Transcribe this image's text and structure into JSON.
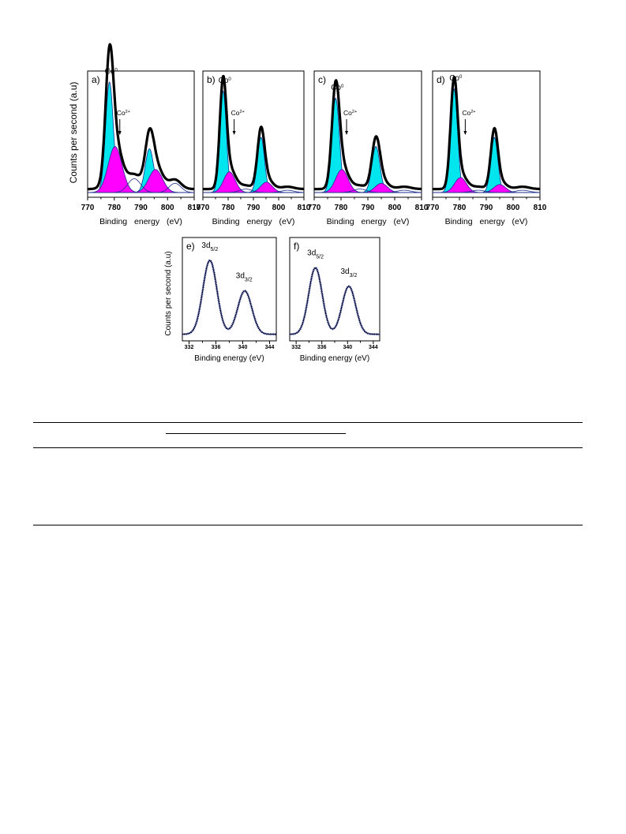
{
  "figure": {
    "ylabel_top": "Counts per second (a.u)",
    "ylabel_bottom": "Counts per second (a.u)",
    "colors": {
      "co0_fill": "#00e5ee",
      "co2_fill": "#ff00ff",
      "envelope": "#000000",
      "fit_line": "#1f2f8c"
    }
  },
  "chart_data": [
    {
      "panel": "a)",
      "type": "area",
      "xlabel": "Binding energy (eV)",
      "xlim": [
        770,
        810
      ],
      "xticks": [
        "770",
        "780",
        "790",
        "800",
        "810"
      ],
      "labels": {
        "co0": "Co",
        "co0_sup": "0",
        "co2": "Co",
        "co2_sup": "2+"
      },
      "components": [
        {
          "name": "Co0",
          "kind": "co0",
          "center": 778.2,
          "amp": 0.96,
          "sigma": 1.45
        },
        {
          "name": "Co2+",
          "kind": "co2",
          "center": 780.3,
          "amp": 0.4,
          "sigma": 2.6
        },
        {
          "name": "Co0 2p1/2",
          "kind": "co0",
          "center": 793.2,
          "amp": 0.38,
          "sigma": 1.6
        },
        {
          "name": "Co2+ 2p1/2",
          "kind": "co2",
          "center": 795.5,
          "amp": 0.2,
          "sigma": 2.6
        },
        {
          "name": "satellite",
          "kind": "sat",
          "center": 787.5,
          "amp": 0.12,
          "sigma": 2.4
        },
        {
          "name": "satellite",
          "kind": "sat",
          "center": 802.8,
          "amp": 0.08,
          "sigma": 2.2
        }
      ]
    },
    {
      "panel": "b)",
      "type": "area",
      "xlabel": "Binding energy (eV)",
      "xlim": [
        770,
        810
      ],
      "xticks": [
        "770",
        "780",
        "790",
        "800",
        "810"
      ],
      "labels": {
        "co0": "Co",
        "co0_sup": "0",
        "co2": "Co",
        "co2_sup": "2+"
      },
      "components": [
        {
          "name": "Co0",
          "kind": "co0",
          "center": 778.0,
          "amp": 0.88,
          "sigma": 1.3
        },
        {
          "name": "Co2+",
          "kind": "co2",
          "center": 780.5,
          "amp": 0.18,
          "sigma": 2.3
        },
        {
          "name": "Co0 2p1/2",
          "kind": "co0",
          "center": 793.0,
          "amp": 0.48,
          "sigma": 1.4
        },
        {
          "name": "Co2+ 2p1/2",
          "kind": "co2",
          "center": 795.2,
          "amp": 0.09,
          "sigma": 2.3
        },
        {
          "name": "satellite",
          "kind": "sat",
          "center": 787.0,
          "amp": 0.03,
          "sigma": 2.5
        },
        {
          "name": "satellite",
          "kind": "sat",
          "center": 803.5,
          "amp": 0.02,
          "sigma": 2.5
        }
      ]
    },
    {
      "panel": "c)",
      "type": "area",
      "xlabel": "Binding energy (eV)",
      "xlim": [
        770,
        810
      ],
      "xticks": [
        "770",
        "780",
        "790",
        "800",
        "810"
      ],
      "labels": {
        "co0": "Co",
        "co0_sup": "0",
        "co2": "Co",
        "co2_sup": "2+"
      },
      "components": [
        {
          "name": "Co0",
          "kind": "co0",
          "center": 778.0,
          "amp": 0.82,
          "sigma": 1.4
        },
        {
          "name": "Co2+",
          "kind": "co2",
          "center": 780.3,
          "amp": 0.2,
          "sigma": 2.3
        },
        {
          "name": "Co0 2p1/2",
          "kind": "co0",
          "center": 793.0,
          "amp": 0.4,
          "sigma": 1.5
        },
        {
          "name": "Co2+ 2p1/2",
          "kind": "co2",
          "center": 795.0,
          "amp": 0.08,
          "sigma": 2.3
        },
        {
          "name": "satellite",
          "kind": "sat",
          "center": 787.0,
          "amp": 0.03,
          "sigma": 2.5
        },
        {
          "name": "satellite",
          "kind": "sat",
          "center": 803.5,
          "amp": 0.02,
          "sigma": 2.5
        }
      ]
    },
    {
      "panel": "d)",
      "type": "area",
      "xlabel": "Binding energy (eV)",
      "xlim": [
        770,
        810
      ],
      "xticks": [
        "770",
        "780",
        "790",
        "800",
        "810"
      ],
      "labels": {
        "co0": "Co",
        "co0_sup": "0",
        "co2": "Co",
        "co2_sup": "2+"
      },
      "components": [
        {
          "name": "Co0",
          "kind": "co0",
          "center": 778.0,
          "amp": 0.9,
          "sigma": 1.3
        },
        {
          "name": "Co2+",
          "kind": "co2",
          "center": 780.4,
          "amp": 0.13,
          "sigma": 2.2
        },
        {
          "name": "Co0 2p1/2",
          "kind": "co0",
          "center": 793.0,
          "amp": 0.48,
          "sigma": 1.3
        },
        {
          "name": "Co2+ 2p1/2",
          "kind": "co2",
          "center": 795.0,
          "amp": 0.07,
          "sigma": 2.2
        },
        {
          "name": "satellite",
          "kind": "sat",
          "center": 787.0,
          "amp": 0.02,
          "sigma": 2.5
        },
        {
          "name": "satellite",
          "kind": "sat",
          "center": 803.5,
          "amp": 0.02,
          "sigma": 2.5
        }
      ]
    },
    {
      "panel": "e)",
      "type": "scatter",
      "xlabel": "Binding energy (eV)",
      "xlim": [
        331,
        345
      ],
      "xticks": [
        "332",
        "336",
        "340",
        "344"
      ],
      "peak_labels": [
        {
          "text": "3d",
          "sub": "5/2",
          "x": 335.1
        },
        {
          "text": "3d",
          "sub": "3/2",
          "x": 340.2
        }
      ],
      "components": [
        {
          "name": "3d5/2",
          "center": 335.1,
          "amp": 0.8,
          "sigma": 1.05
        },
        {
          "name": "3d3/2",
          "center": 340.3,
          "amp": 0.47,
          "sigma": 1.05
        }
      ]
    },
    {
      "panel": "f)",
      "type": "scatter",
      "xlabel": "Binding energy (eV)",
      "xlim": [
        331,
        345
      ],
      "xticks": [
        "332",
        "336",
        "340",
        "344"
      ],
      "peak_labels": [
        {
          "text": "3d",
          "sub": "5/2",
          "x": 335.0
        },
        {
          "text": "3d",
          "sub": "3/2",
          "x": 340.2
        }
      ],
      "components": [
        {
          "name": "3d5/2",
          "center": 335.0,
          "amp": 0.72,
          "sigma": 1.05
        },
        {
          "name": "3d3/2",
          "center": 340.2,
          "amp": 0.52,
          "sigma": 1.05
        }
      ]
    }
  ]
}
